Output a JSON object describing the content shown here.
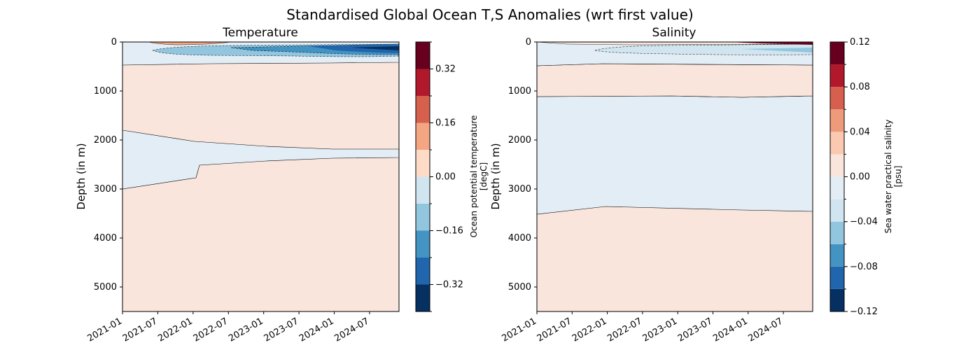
{
  "figure": {
    "title": "Standardised Global Ocean T,S Anomalies (wrt first value)"
  },
  "chart_data": [
    {
      "type": "contour",
      "title": "Temperature",
      "xlabel": "",
      "ylabel": "Depth (in m)",
      "x_ticks": [
        "2021-01",
        "2021-07",
        "2022-01",
        "2022-07",
        "2023-01",
        "2023-07",
        "2024-01",
        "2024-07"
      ],
      "xlim": [
        "2021-01",
        "2024-12"
      ],
      "ylim": [
        5500,
        0
      ],
      "y_ticks": [
        0,
        1000,
        2000,
        3000,
        4000,
        5000
      ],
      "colorbar": {
        "label": "Ocean potential temperature\n[degC]",
        "levels": [
          -0.4,
          -0.32,
          -0.24,
          -0.16,
          -0.08,
          0.0,
          0.08,
          0.16,
          0.24,
          0.32,
          0.4
        ],
        "tick_values": [
          -0.32,
          -0.16,
          0.0,
          0.16,
          0.32
        ],
        "tick_labels": [
          "−0.32",
          "−0.16",
          "0.00",
          "0.16",
          "0.32"
        ],
        "colors": [
          "#053061",
          "#2166ac",
          "#4393c3",
          "#92c5de",
          "#d1e5f0",
          "#fddbc7",
          "#f4a582",
          "#d6604d",
          "#b2182b",
          "#67001f"
        ]
      },
      "regions": [
        {
          "description": "near-surface negative anomaly band",
          "depth_range_m": [
            0,
            470
          ],
          "level_range": [
            -0.08,
            0.0
          ]
        },
        {
          "description": "strong cooling core (upper ~300 m, 2023–2024)",
          "depth_range_m": [
            60,
            230
          ],
          "level_range": [
            -0.4,
            -0.16
          ]
        },
        {
          "description": "warm surface layer (early 2021–2022)",
          "depth_range_m": [
            0,
            60
          ],
          "level_range": [
            0.0,
            0.24
          ]
        },
        {
          "description": "intermediate and deep positive anomaly",
          "depth_range_m": [
            470,
            5500
          ],
          "level_range": [
            0.0,
            0.08
          ]
        },
        {
          "description": "negative anomaly lens near 2000–3000 m",
          "depth_range_m": [
            1800,
            3000
          ],
          "level_range": [
            -0.08,
            0.0
          ]
        }
      ]
    },
    {
      "type": "contour",
      "title": "Salinity",
      "xlabel": "",
      "ylabel": "Depth (in m)",
      "x_ticks": [
        "2021-01",
        "2021-07",
        "2022-01",
        "2022-07",
        "2023-01",
        "2023-07",
        "2024-01",
        "2024-07"
      ],
      "xlim": [
        "2021-01",
        "2024-12"
      ],
      "ylim": [
        5500,
        0
      ],
      "y_ticks": [
        0,
        1000,
        2000,
        3000,
        4000,
        5000
      ],
      "colorbar": {
        "label": "Sea water practical salinity\n[psu]",
        "levels": [
          -0.12,
          -0.1,
          -0.08,
          -0.06,
          -0.04,
          -0.02,
          0.0,
          0.02,
          0.04,
          0.06,
          0.08,
          0.1,
          0.12
        ],
        "tick_values": [
          -0.12,
          -0.08,
          -0.04,
          0.0,
          0.04,
          0.08,
          0.12
        ],
        "tick_labels": [
          "−0.12",
          "−0.08",
          "−0.04",
          "0.00",
          "0.04",
          "0.08",
          "0.12"
        ],
        "colors": [
          "#053061",
          "#2166ac",
          "#4393c3",
          "#92c5de",
          "#d1e5f0",
          "#e3edf5",
          "#f9e5dc",
          "#fbc8b0",
          "#f09a7c",
          "#d6604d",
          "#b2182b",
          "#67001f"
        ]
      },
      "regions": [
        {
          "description": "surface positive anomaly",
          "depth_range_m": [
            0,
            50
          ],
          "level_range": [
            0.0,
            0.12
          ]
        },
        {
          "description": "upper negative anomaly band",
          "depth_range_m": [
            60,
            470
          ],
          "level_range": [
            -0.04,
            0.0
          ]
        },
        {
          "description": "upper-intermediate positive anomaly",
          "depth_range_m": [
            470,
            1110
          ],
          "level_range": [
            0.0,
            0.02
          ]
        },
        {
          "description": "intermediate negative anomaly",
          "depth_range_m": [
            1110,
            3450
          ],
          "level_range": [
            -0.02,
            0.0
          ]
        },
        {
          "description": "abyssal positive anomaly",
          "depth_range_m": [
            3450,
            5500
          ],
          "level_range": [
            0.0,
            0.02
          ]
        }
      ]
    }
  ]
}
